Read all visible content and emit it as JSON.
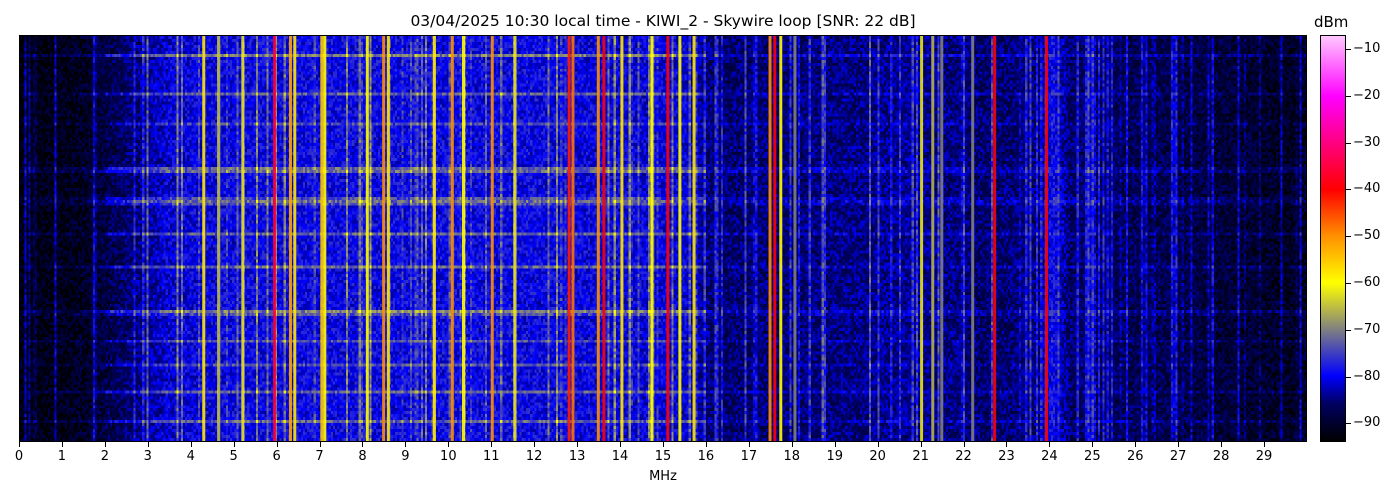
{
  "chart_data": {
    "type": "heatmap",
    "title": "03/04/2025 10:30 local time - KIWI_2 - Skywire loop [SNR: 22 dB]",
    "xlabel": "MHz",
    "ylabel": "",
    "xlim": [
      0,
      30
    ],
    "xticks": [
      0,
      1,
      2,
      3,
      4,
      5,
      6,
      7,
      8,
      9,
      10,
      11,
      12,
      13,
      14,
      15,
      16,
      17,
      18,
      19,
      20,
      21,
      22,
      23,
      24,
      25,
      26,
      27,
      28,
      29
    ],
    "colorbar": {
      "label": "dBm",
      "range": [
        -94,
        -7
      ],
      "ticks": [
        -10,
        -20,
        -30,
        -40,
        -50,
        -60,
        -70,
        -80,
        -90
      ],
      "colormap": [
        {
          "value": -94,
          "color": "#000000"
        },
        {
          "value": -86,
          "color": "#000060"
        },
        {
          "value": -80,
          "color": "#0000ff"
        },
        {
          "value": -70,
          "color": "#808080"
        },
        {
          "value": -60,
          "color": "#ffff00"
        },
        {
          "value": -50,
          "color": "#ff9000"
        },
        {
          "value": -40,
          "color": "#ff0000"
        },
        {
          "value": -30,
          "color": "#ff0080"
        },
        {
          "value": -20,
          "color": "#ff00ff"
        },
        {
          "value": -7,
          "color": "#ffc8ff"
        }
      ]
    },
    "noise_floor": [
      {
        "mhz": 0,
        "dbm": -93
      },
      {
        "mhz": 1.5,
        "dbm": -91
      },
      {
        "mhz": 2.5,
        "dbm": -86
      },
      {
        "mhz": 3.5,
        "dbm": -81
      },
      {
        "mhz": 5,
        "dbm": -80
      },
      {
        "mhz": 9,
        "dbm": -80
      },
      {
        "mhz": 12,
        "dbm": -80
      },
      {
        "mhz": 15.5,
        "dbm": -81
      },
      {
        "mhz": 16.2,
        "dbm": -86
      },
      {
        "mhz": 19,
        "dbm": -85
      },
      {
        "mhz": 21,
        "dbm": -84
      },
      {
        "mhz": 22.5,
        "dbm": -86
      },
      {
        "mhz": 23.8,
        "dbm": -85
      },
      {
        "mhz": 24.1,
        "dbm": -79
      },
      {
        "mhz": 24.5,
        "dbm": -86
      },
      {
        "mhz": 27,
        "dbm": -88
      },
      {
        "mhz": 30,
        "dbm": -91
      }
    ],
    "signals": [
      {
        "mhz": 4.28,
        "dbm": -58
      },
      {
        "mhz": 4.63,
        "dbm": -66
      },
      {
        "mhz": 5.19,
        "dbm": -62
      },
      {
        "mhz": 5.93,
        "dbm": -36
      },
      {
        "mhz": 6.3,
        "dbm": -52
      },
      {
        "mhz": 6.4,
        "dbm": -58
      },
      {
        "mhz": 7.03,
        "dbm": -55
      },
      {
        "mhz": 7.1,
        "dbm": -60
      },
      {
        "mhz": 8.09,
        "dbm": -60
      },
      {
        "mhz": 8.47,
        "dbm": -50
      },
      {
        "mhz": 8.58,
        "dbm": -58
      },
      {
        "mhz": 9.65,
        "dbm": -58
      },
      {
        "mhz": 10.07,
        "dbm": -50
      },
      {
        "mhz": 10.33,
        "dbm": -60
      },
      {
        "mhz": 11.0,
        "dbm": -50
      },
      {
        "mhz": 11.53,
        "dbm": -62
      },
      {
        "mhz": 12.79,
        "dbm": -42
      },
      {
        "mhz": 12.88,
        "dbm": -48
      },
      {
        "mhz": 13.47,
        "dbm": -50
      },
      {
        "mhz": 13.6,
        "dbm": -40
      },
      {
        "mhz": 14.02,
        "dbm": -58
      },
      {
        "mhz": 14.72,
        "dbm": -60
      },
      {
        "mhz": 15.09,
        "dbm": -40
      },
      {
        "mhz": 15.37,
        "dbm": -60
      },
      {
        "mhz": 15.7,
        "dbm": -58
      },
      {
        "mhz": 17.47,
        "dbm": -50
      },
      {
        "mhz": 17.58,
        "dbm": -40
      },
      {
        "mhz": 17.72,
        "dbm": -60
      },
      {
        "mhz": 18.05,
        "dbm": -70
      },
      {
        "mhz": 21.0,
        "dbm": -62
      },
      {
        "mhz": 21.26,
        "dbm": -66
      },
      {
        "mhz": 21.47,
        "dbm": -70
      },
      {
        "mhz": 22.19,
        "dbm": -70
      },
      {
        "mhz": 22.7,
        "dbm": -40
      },
      {
        "mhz": 23.91,
        "dbm": -40
      }
    ]
  }
}
